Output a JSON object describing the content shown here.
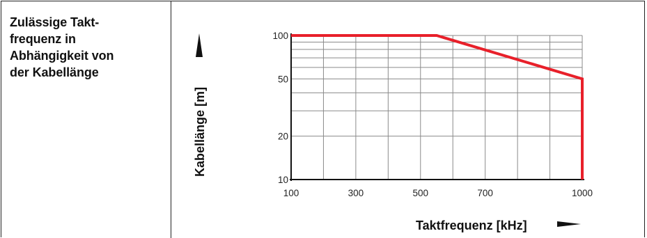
{
  "description_label": "Zulässige Takt-\nfrequenz in\nAbhängigkeit von\nder Kabellänge",
  "chart_data": {
    "type": "line",
    "xlabel": "Taktfrequenz [kHz]",
    "ylabel": "Kabellänge [m]",
    "x_scale": "linear",
    "y_scale": "log",
    "xlim": [
      100,
      1000
    ],
    "ylim": [
      10,
      100
    ],
    "x_ticks": [
      100,
      300,
      500,
      700,
      1000
    ],
    "x_tick_labels": [
      "100",
      "300",
      "500",
      "700",
      "1000"
    ],
    "y_ticks": [
      10,
      20,
      50,
      100
    ],
    "y_tick_labels": [
      "10",
      "20",
      "50",
      "100"
    ],
    "grid": true,
    "x_grid": [
      100,
      200,
      300,
      400,
      500,
      600,
      700,
      800,
      900,
      1000
    ],
    "y_grid": [
      10,
      20,
      30,
      40,
      50,
      60,
      70,
      80,
      90,
      100
    ],
    "line_color": "#e8202a",
    "series": [
      {
        "x": [
          100,
          550,
          1000,
          1000
        ],
        "y": [
          100,
          100,
          50,
          10
        ]
      }
    ]
  }
}
